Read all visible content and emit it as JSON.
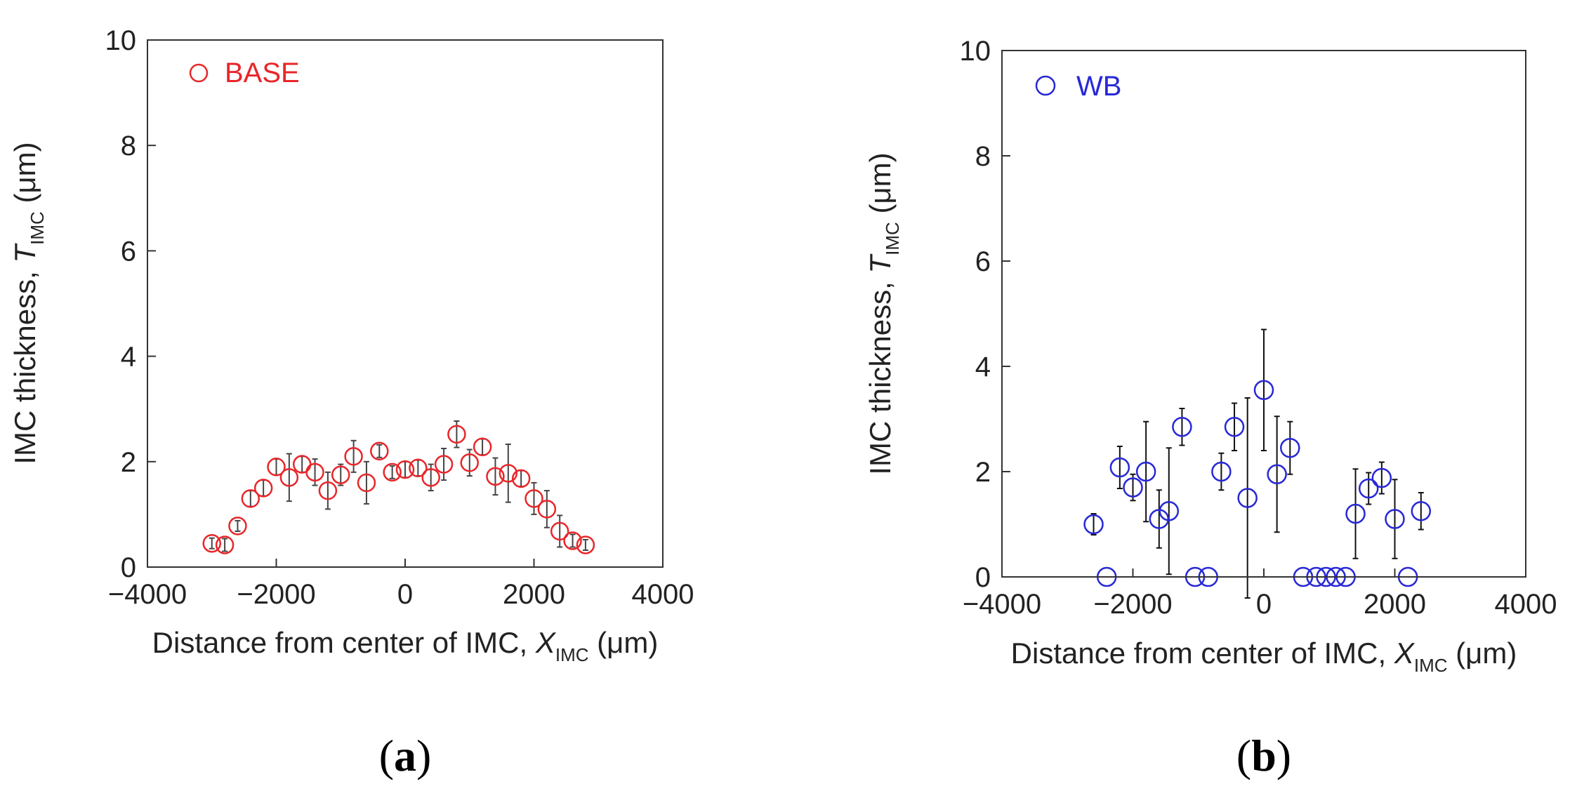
{
  "chart_data": [
    {
      "type": "scatter",
      "panel_label": {
        "open": "(",
        "letter": "a",
        "close": ")"
      },
      "legend": "BASE",
      "color": "#e8262a",
      "errorbar_color": "#444444",
      "xlabel": {
        "text": "Distance from center of IMC, ",
        "symbol": "X",
        "sub": "IMC",
        "unit": " (μm)"
      },
      "ylabel": {
        "text": "IMC thickness, ",
        "symbol": "T",
        "sub": "IMC",
        "unit": " (μm)"
      },
      "xlim": [
        -4000,
        4000
      ],
      "ylim": [
        0,
        10
      ],
      "xticks": [
        "−4000",
        "−2000",
        "0",
        "2000",
        "4000"
      ],
      "yticks": [
        "0",
        "2",
        "4",
        "6",
        "8",
        "10"
      ],
      "points": [
        {
          "x": -3000,
          "y": 0.45,
          "err": 0.1
        },
        {
          "x": -2800,
          "y": 0.42,
          "err": 0.12
        },
        {
          "x": -2600,
          "y": 0.78,
          "err": 0.1
        },
        {
          "x": -2400,
          "y": 1.3,
          "err": 0.15
        },
        {
          "x": -2200,
          "y": 1.5,
          "err": 0.15
        },
        {
          "x": -2000,
          "y": 1.9,
          "err": 0.15
        },
        {
          "x": -1800,
          "y": 1.7,
          "err": 0.45
        },
        {
          "x": -1600,
          "y": 1.95,
          "err": 0.15
        },
        {
          "x": -1400,
          "y": 1.8,
          "err": 0.25
        },
        {
          "x": -1200,
          "y": 1.45,
          "err": 0.35
        },
        {
          "x": -1000,
          "y": 1.75,
          "err": 0.2
        },
        {
          "x": -800,
          "y": 2.1,
          "err": 0.3
        },
        {
          "x": -600,
          "y": 1.6,
          "err": 0.4
        },
        {
          "x": -400,
          "y": 2.2,
          "err": 0.12
        },
        {
          "x": -200,
          "y": 1.8,
          "err": 0.12
        },
        {
          "x": 0,
          "y": 1.85,
          "err": 0.15
        },
        {
          "x": 200,
          "y": 1.88,
          "err": 0.15
        },
        {
          "x": 400,
          "y": 1.7,
          "err": 0.25
        },
        {
          "x": 600,
          "y": 1.95,
          "err": 0.3
        },
        {
          "x": 800,
          "y": 2.52,
          "err": 0.25
        },
        {
          "x": 1000,
          "y": 1.98,
          "err": 0.25
        },
        {
          "x": 1200,
          "y": 2.28,
          "err": 0.15
        },
        {
          "x": 1400,
          "y": 1.72,
          "err": 0.35
        },
        {
          "x": 1600,
          "y": 1.78,
          "err": 0.55
        },
        {
          "x": 1800,
          "y": 1.68,
          "err": 0.15
        },
        {
          "x": 2000,
          "y": 1.3,
          "err": 0.3
        },
        {
          "x": 2200,
          "y": 1.1,
          "err": 0.35
        },
        {
          "x": 2400,
          "y": 0.68,
          "err": 0.3
        },
        {
          "x": 2600,
          "y": 0.5,
          "err": 0.12
        },
        {
          "x": 2800,
          "y": 0.42,
          "err": 0.1
        }
      ]
    },
    {
      "type": "scatter",
      "panel_label": {
        "open": "(",
        "letter": "b",
        "close": ")"
      },
      "legend": "WB",
      "color": "#2828d6",
      "errorbar_color": "#111111",
      "xlabel": {
        "text": "Distance from center of IMC, ",
        "symbol": "X",
        "sub": "IMC",
        "unit": " (μm)"
      },
      "ylabel": {
        "text": "IMC thickness, ",
        "symbol": "T",
        "sub": "IMC",
        "unit": " (μm)"
      },
      "xlim": [
        -4000,
        4000
      ],
      "ylim": [
        0,
        10
      ],
      "xticks": [
        "−4000",
        "−2000",
        "0",
        "2000",
        "4000"
      ],
      "yticks": [
        "0",
        "2",
        "4",
        "6",
        "8",
        "10"
      ],
      "points": [
        {
          "x": -2600,
          "y": 1.0,
          "err": 0.2
        },
        {
          "x": -2400,
          "y": 0.0,
          "err": 0
        },
        {
          "x": -2200,
          "y": 2.08,
          "err": 0.4
        },
        {
          "x": -2000,
          "y": 1.7,
          "err": 0.25
        },
        {
          "x": -1800,
          "y": 2.0,
          "err": 0.95
        },
        {
          "x": -1600,
          "y": 1.1,
          "err": 0.55
        },
        {
          "x": -1450,
          "y": 1.25,
          "err": 1.2
        },
        {
          "x": -1250,
          "y": 2.85,
          "err": 0.35
        },
        {
          "x": -1050,
          "y": 0.0,
          "err": 0
        },
        {
          "x": -850,
          "y": 0.0,
          "err": 0
        },
        {
          "x": -650,
          "y": 2.0,
          "err": 0.35
        },
        {
          "x": -450,
          "y": 2.85,
          "err": 0.45
        },
        {
          "x": -250,
          "y": 1.5,
          "err": 1.9
        },
        {
          "x": 0,
          "y": 3.55,
          "err": 1.15
        },
        {
          "x": 200,
          "y": 1.95,
          "err": 1.1
        },
        {
          "x": 400,
          "y": 2.45,
          "err": 0.5
        },
        {
          "x": 600,
          "y": 0.0,
          "err": 0
        },
        {
          "x": 800,
          "y": 0.0,
          "err": 0
        },
        {
          "x": 950,
          "y": 0.0,
          "err": 0
        },
        {
          "x": 1100,
          "y": 0.0,
          "err": 0
        },
        {
          "x": 1250,
          "y": 0.0,
          "err": 0
        },
        {
          "x": 1400,
          "y": 1.2,
          "err": 0.85
        },
        {
          "x": 1600,
          "y": 1.68,
          "err": 0.3
        },
        {
          "x": 1800,
          "y": 1.88,
          "err": 0.3
        },
        {
          "x": 2000,
          "y": 1.1,
          "err": 0.75
        },
        {
          "x": 2200,
          "y": 0.0,
          "err": 0
        },
        {
          "x": 2400,
          "y": 1.25,
          "err": 0.35
        }
      ]
    }
  ]
}
